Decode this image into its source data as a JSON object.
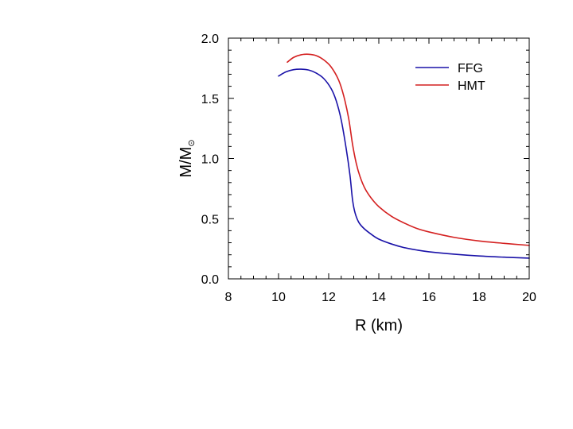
{
  "chart_data": {
    "type": "line",
    "title": "",
    "xlabel": "R (km)",
    "ylabel_main": "M/M",
    "ylabel_sub": "⊙",
    "xlim": [
      8,
      20
    ],
    "ylim": [
      0.0,
      2.0
    ],
    "x_ticks": [
      "8",
      "10",
      "12",
      "14",
      "16",
      "18",
      "20"
    ],
    "y_ticks": [
      "0.0",
      "0.5",
      "1.0",
      "1.5",
      "2.0"
    ],
    "legend_position": "top-right",
    "series": [
      {
        "name": "FFG",
        "color": "#1a12a8",
        "x": [
          10.0,
          10.3,
          10.6,
          10.9,
          11.2,
          11.5,
          11.8,
          12.1,
          12.3,
          12.5,
          12.7,
          12.85,
          12.95,
          13.05,
          13.2,
          13.4,
          13.7,
          14.0,
          14.5,
          15.0,
          15.5,
          16.0,
          17.0,
          18.0,
          19.0,
          20.0
        ],
        "y": [
          1.685,
          1.72,
          1.738,
          1.742,
          1.735,
          1.71,
          1.665,
          1.58,
          1.48,
          1.32,
          1.08,
          0.86,
          0.66,
          0.55,
          0.47,
          0.42,
          0.37,
          0.33,
          0.29,
          0.26,
          0.24,
          0.225,
          0.205,
          0.19,
          0.18,
          0.172
        ]
      },
      {
        "name": "HMT",
        "color": "#d42020",
        "x": [
          10.35,
          10.6,
          10.9,
          11.2,
          11.5,
          11.8,
          12.1,
          12.4,
          12.6,
          12.8,
          12.95,
          13.1,
          13.25,
          13.45,
          13.7,
          14.0,
          14.5,
          15.0,
          15.5,
          16.0,
          17.0,
          18.0,
          19.0,
          20.0
        ],
        "y": [
          1.8,
          1.84,
          1.862,
          1.866,
          1.855,
          1.82,
          1.76,
          1.65,
          1.52,
          1.33,
          1.12,
          0.96,
          0.85,
          0.75,
          0.67,
          0.6,
          0.52,
          0.465,
          0.42,
          0.39,
          0.345,
          0.315,
          0.295,
          0.278
        ]
      }
    ]
  }
}
